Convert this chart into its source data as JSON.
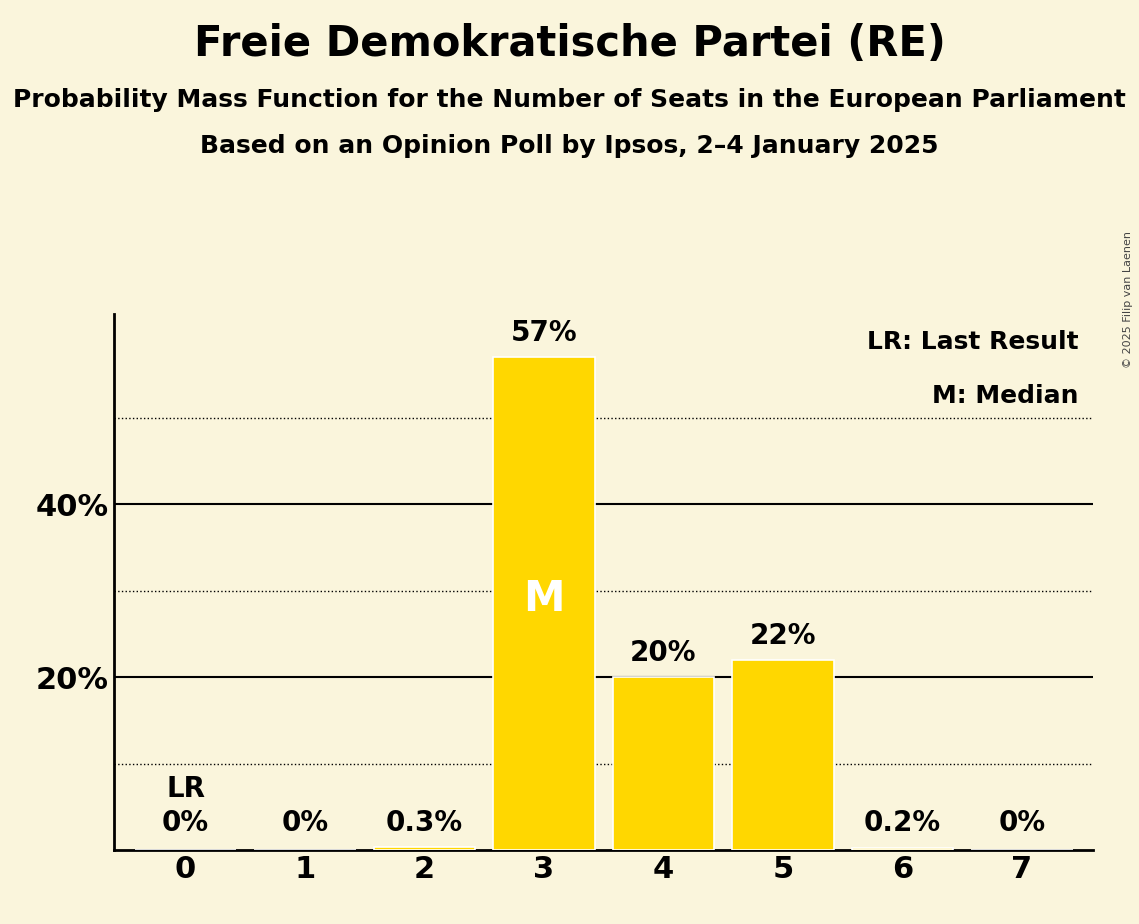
{
  "title": "Freie Demokratische Partei (RE)",
  "subtitle": "Probability Mass Function for the Number of Seats in the European Parliament",
  "subsubtitle": "Based on an Opinion Poll by Ipsos, 2–4 January 2025",
  "copyright": "© 2025 Filip van Laenen",
  "categories": [
    0,
    1,
    2,
    3,
    4,
    5,
    6,
    7
  ],
  "values": [
    0.0,
    0.0,
    0.3,
    57.0,
    20.0,
    22.0,
    0.2,
    0.0
  ],
  "bar_color": "#FFD700",
  "background_color": "#FAF5DC",
  "median_bar": 3,
  "lr_bar": 0,
  "legend_lr": "LR: Last Result",
  "legend_m": "M: Median",
  "bar_labels": [
    "0%",
    "0%",
    "0.3%",
    "57%",
    "20%",
    "22%",
    "0.2%",
    "0%"
  ],
  "ylim": [
    0,
    62
  ],
  "solid_yticks": [
    20,
    40
  ],
  "dotted_yticks": [
    10,
    30,
    50
  ],
  "ylabel_ticks": [
    20,
    40
  ],
  "title_fontsize": 30,
  "subtitle_fontsize": 18,
  "subsubtitle_fontsize": 18,
  "bar_label_fontsize": 20,
  "axis_tick_fontsize": 22,
  "legend_fontsize": 18,
  "median_label_fontsize": 30,
  "lr_label_fontsize": 20
}
